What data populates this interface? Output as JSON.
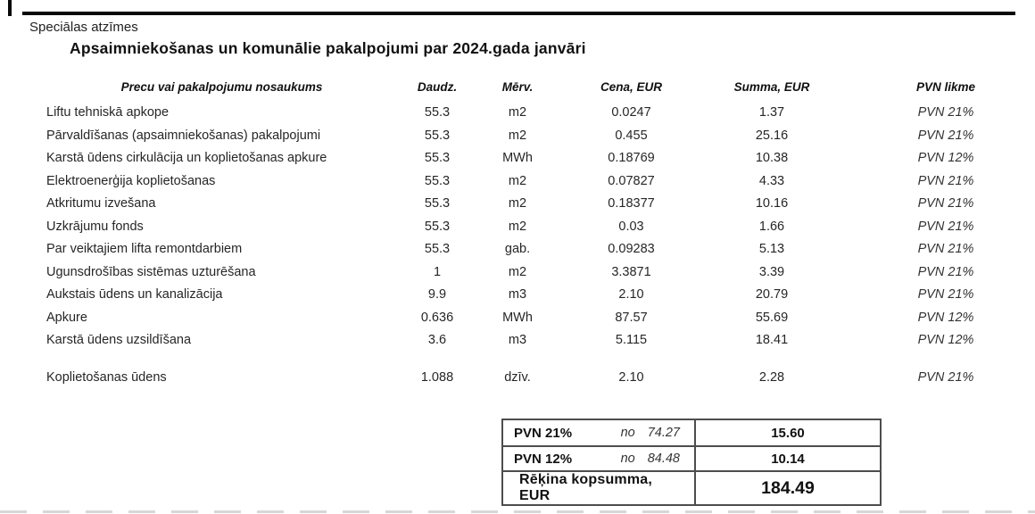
{
  "page": {
    "special_notes_label": "Speciālas atzīmes",
    "title": "Apsaimniekošanas un komunālie pakalpojumi par 2024.gada janvāri"
  },
  "colors": {
    "ink": "#1d1d1d",
    "box_border": "#4d4d4d"
  },
  "table": {
    "headers": {
      "name": "Precu vai pakalpojumu nosaukums",
      "quantity": "Daudz.",
      "unit": "Mērv.",
      "price": "Cena, EUR",
      "amount": "Summa, EUR",
      "vat": "PVN likme"
    },
    "rows": [
      {
        "name": "Liftu tehniskā apkope",
        "quantity": "55.3",
        "unit": "m2",
        "price": "0.0247",
        "amount": "1.37",
        "vat": "PVN 21%"
      },
      {
        "name": "Pārvaldīšanas (apsaimniekošanas) pakalpojumi",
        "quantity": "55.3",
        "unit": "m2",
        "price": "0.455",
        "amount": "25.16",
        "vat": "PVN 21%"
      },
      {
        "name": "Karstā ūdens cirkulācija un koplietošanas apkure",
        "quantity": "55.3",
        "unit": "MWh",
        "price": "0.18769",
        "amount": "10.38",
        "vat": "PVN 12%"
      },
      {
        "name": "Elektroenerģija koplietošanas",
        "quantity": "55.3",
        "unit": "m2",
        "price": "0.07827",
        "amount": "4.33",
        "vat": "PVN 21%"
      },
      {
        "name": "Atkritumu izvešana",
        "quantity": "55.3",
        "unit": "m2",
        "price": "0.18377",
        "amount": "10.16",
        "vat": "PVN 21%"
      },
      {
        "name": "Uzkrājumu fonds",
        "quantity": "55.3",
        "unit": "m2",
        "price": "0.03",
        "amount": "1.66",
        "vat": "PVN 21%"
      },
      {
        "name": "Par veiktajiem lifta remontdarbiem",
        "quantity": "55.3",
        "unit": "gab.",
        "price": "0.09283",
        "amount": "5.13",
        "vat": "PVN 21%"
      },
      {
        "name": "Ugunsdrošības sistēmas uzturēšana",
        "quantity": "1",
        "unit": "m2",
        "price": "3.3871",
        "amount": "3.39",
        "vat": "PVN 21%"
      },
      {
        "name": "Aukstais ūdens un kanalizācija",
        "quantity": "9.9",
        "unit": "m3",
        "price": "2.10",
        "amount": "20.79",
        "vat": "PVN 21%"
      },
      {
        "name": "Apkure",
        "quantity": "0.636",
        "unit": "MWh",
        "price": "87.57",
        "amount": "55.69",
        "vat": "PVN 12%"
      },
      {
        "name": "Karstā ūdens uzsildīšana",
        "quantity": "3.6",
        "unit": "m3",
        "price": "5.115",
        "amount": "18.41",
        "vat": "PVN 12%"
      },
      {
        "name": "Koplietošanas ūdens",
        "quantity": "1.088",
        "unit": "dzīv.",
        "price": "2.10",
        "amount": "2.28",
        "vat": "PVN 21%"
      }
    ]
  },
  "summary": {
    "vat_rows": [
      {
        "label": "PVN 21%",
        "base_prefix": "no",
        "base": "74.27",
        "value": "15.60"
      },
      {
        "label": "PVN 12%",
        "base_prefix": "no",
        "base": "84.48",
        "value": "10.14"
      }
    ],
    "total_label": "Rēķina kopsumma, EUR",
    "total_value": "184.49"
  }
}
